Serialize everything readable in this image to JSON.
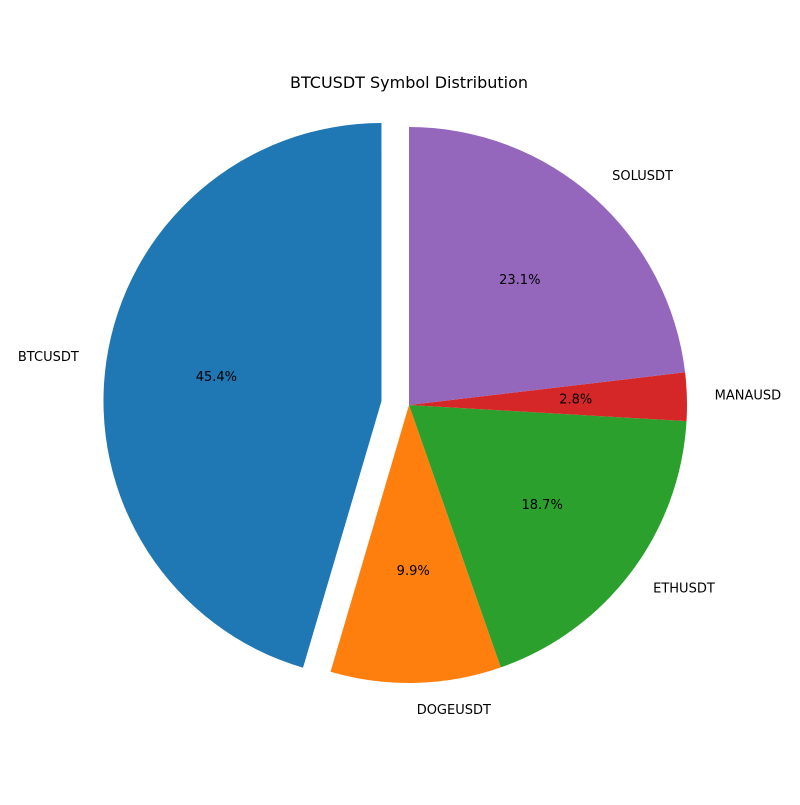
{
  "chart_data": {
    "type": "pie",
    "title": "BTCUSDT Symbol Distribution",
    "start_angle_deg": 90,
    "direction": "counterclockwise",
    "slices": [
      {
        "label": "BTCUSDT",
        "value": 45.4,
        "pct_label": "45.4%",
        "color": "#1f77b4",
        "exploded": true
      },
      {
        "label": "DOGEUSDT",
        "value": 9.9,
        "pct_label": "9.9%",
        "color": "#ff7f0e",
        "exploded": false
      },
      {
        "label": "ETHUSDT",
        "value": 18.7,
        "pct_label": "18.7%",
        "color": "#2ca02c",
        "exploded": false
      },
      {
        "label": "MANAUSD",
        "value": 2.8,
        "pct_label": "2.8%",
        "color": "#d62728",
        "exploded": false
      },
      {
        "label": "SOLUSDT",
        "value": 23.1,
        "pct_label": "23.1%",
        "color": "#9467bd",
        "exploded": false
      }
    ]
  }
}
